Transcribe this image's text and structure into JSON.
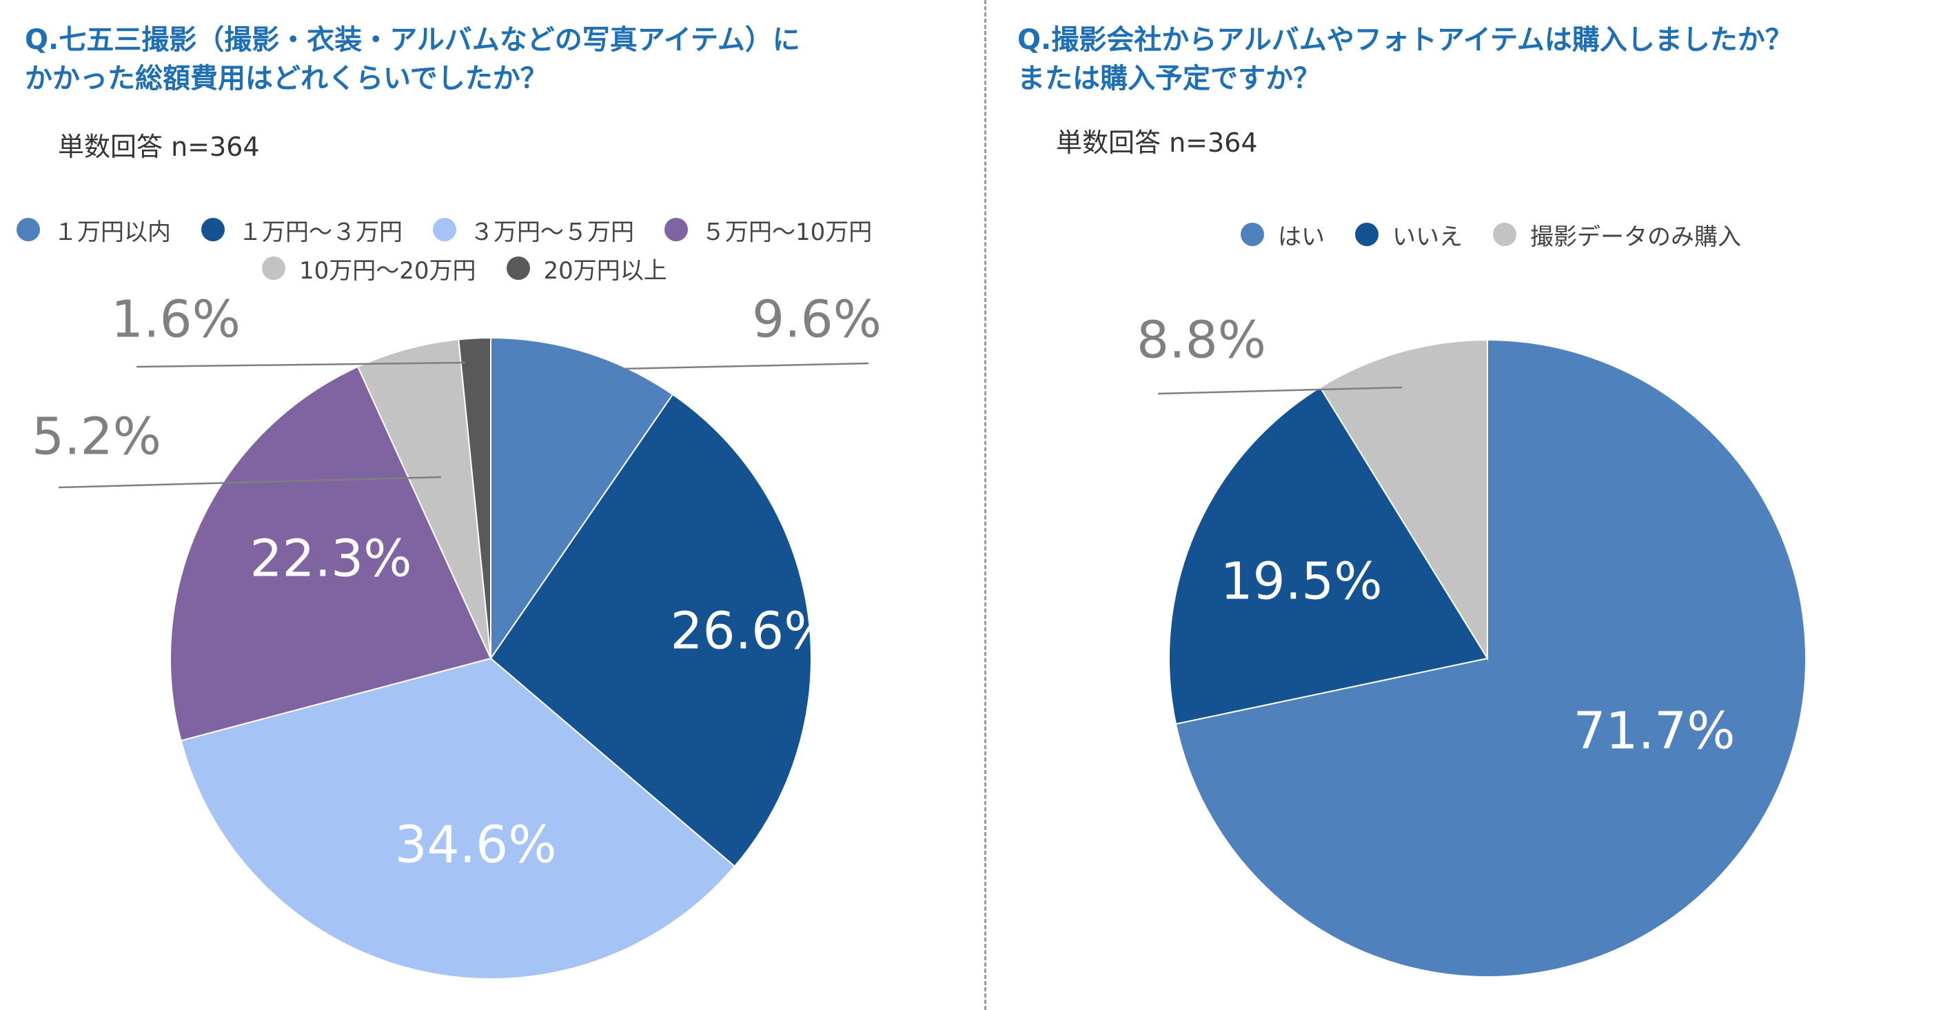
{
  "chart_data": [
    {
      "type": "pie",
      "title_lines": [
        "Q.七五三撮影（撮影・衣装・アルバムなどの写真アイテム）に",
        "かかった総額費用はどれくらいでしたか？"
      ],
      "sample": "単数回答 n=364",
      "legend_rows": [
        [
          0,
          1,
          2,
          3
        ],
        [
          4,
          5
        ]
      ],
      "slices": [
        {
          "label": "１万円以内",
          "value": 9.6,
          "display": "9.6%",
          "color": "#4f81bd",
          "label_color": "#808080"
        },
        {
          "label": "１万円～３万円",
          "value": 26.6,
          "display": "26.6%",
          "color": "#145291",
          "label_color": "#ffffff"
        },
        {
          "label": "３万円～５万円",
          "value": 34.6,
          "display": "34.6%",
          "color": "#a5c3f5",
          "label_color": "#ffffff"
        },
        {
          "label": "５万円～10万円",
          "value": 22.3,
          "display": "22.3%",
          "color": "#8064a2",
          "label_color": "#ffffff"
        },
        {
          "label": "10万円～20万円",
          "value": 5.2,
          "display": "5.2%",
          "color": "#c3c3c3",
          "label_color": "#808080"
        },
        {
          "label": "20万円以上",
          "value": 1.6,
          "display": "1.6%",
          "color": "#595959",
          "label_color": "#808080"
        }
      ]
    },
    {
      "type": "pie",
      "title_lines": [
        "Q.撮影会社からアルバムやフォトアイテムは購入しましたか？",
        "または購入予定ですか？"
      ],
      "sample": "単数回答 n=364",
      "legend_rows": [
        [
          0,
          1,
          2
        ]
      ],
      "slices": [
        {
          "label": "はい",
          "value": 71.7,
          "display": "71.7%",
          "color": "#4f81bd",
          "label_color": "#ffffff"
        },
        {
          "label": "いいえ",
          "value": 19.5,
          "display": "19.5%",
          "color": "#145291",
          "label_color": "#ffffff"
        },
        {
          "label": "撮影データのみ購入",
          "value": 8.8,
          "display": "8.8%",
          "color": "#c3c3c3",
          "label_color": "#808080"
        }
      ]
    }
  ]
}
